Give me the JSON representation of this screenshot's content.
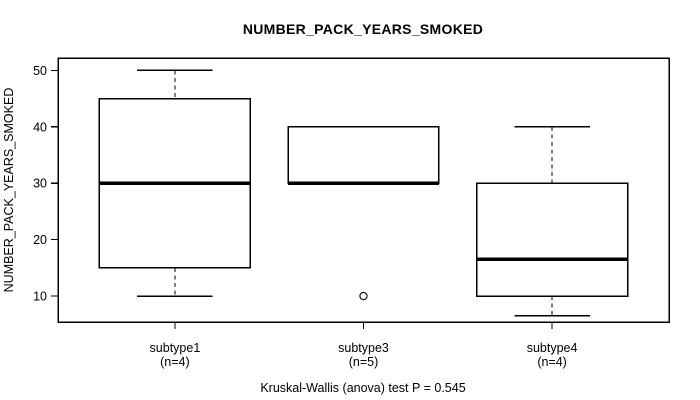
{
  "chart_data": {
    "type": "boxplot",
    "title": "NUMBER_PACK_YEARS_SMOKED",
    "ylabel": "NUMBER_PACK_YEARS_SMOKED",
    "xlabel": "",
    "caption": "Kruskal-Wallis (anova) test P = 0.545",
    "ylim": [
      5.4,
      52.2
    ],
    "yticks": [
      10,
      20,
      30,
      40,
      50
    ],
    "grid": false,
    "legend_position": "none",
    "groups": [
      {
        "label": "subtype1",
        "count_label": "(n=4)",
        "whisker_low": 10,
        "q1": 15,
        "median": 30,
        "q3": 45,
        "whisker_high": 50,
        "outliers": []
      },
      {
        "label": "subtype3",
        "count_label": "(n=5)",
        "whisker_low": 30,
        "q1": 30,
        "median": 30,
        "q3": 40,
        "whisker_high": 40,
        "outliers": [
          10
        ]
      },
      {
        "label": "subtype4",
        "count_label": "(n=4)",
        "whisker_low": 6.5,
        "q1": 10,
        "median": 16.5,
        "q3": 30,
        "whisker_high": 40,
        "outliers": []
      }
    ],
    "colors": {
      "stroke": "#000000",
      "box_fill": "#ffffff",
      "background": "#ffffff"
    }
  }
}
